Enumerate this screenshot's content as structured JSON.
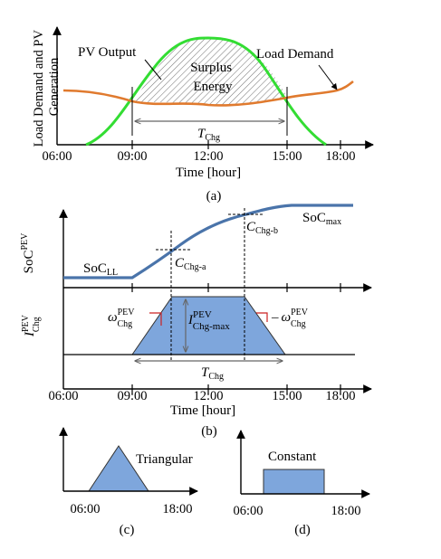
{
  "panel_a": {
    "ylabel_line1": "Load Demand and PV",
    "ylabel_line2": "Generation",
    "pv_label": "PV Output",
    "load_label": "Load Demand",
    "surplus_line1": "Surplus",
    "surplus_line2": "Energy",
    "tchg_base": "T",
    "tchg_sub": "Chg",
    "ticks": [
      "06:00",
      "09:00",
      "12:00",
      "15:00",
      "18:00"
    ],
    "xlabel": "Time [hour]",
    "caption": "(a)",
    "colors": {
      "pv": "#33dd33",
      "load": "#e07a2e"
    }
  },
  "panel_b": {
    "soc_axis_base": "SoC",
    "soc_axis_sup": "PEV",
    "soc_ll_base": "SoC",
    "soc_ll_sub": "LL",
    "soc_max_base": "SoC",
    "soc_max_sub": "max",
    "c_a_base": "C",
    "c_a_sub": "Chg-a",
    "c_b_base": "C",
    "c_b_sub": "Chg-b",
    "i_axis_base": "I",
    "i_axis_sup": "PEV",
    "i_axis_sub": "Chg",
    "imax_base": "I",
    "imax_sup": "PEV",
    "imax_sub": "Chg-max",
    "omega_base": "ω",
    "omega_sup": "PEV",
    "omega_sub": "Chg",
    "omega_minus": "–",
    "tchg_base": "T",
    "tchg_sub": "Chg",
    "ticks": [
      "06:00",
      "09:00",
      "12:00",
      "15:00",
      "18:00"
    ],
    "xlabel": "Time [hour]",
    "caption": "(b)",
    "colors": {
      "soc": "#4a74aa",
      "fill": "#7ea6dc"
    }
  },
  "panel_c": {
    "label": "Triangular",
    "tick_start": "06:00",
    "tick_end": "18:00",
    "caption": "(c)"
  },
  "panel_d": {
    "label": "Constant",
    "tick_start": "06:00",
    "tick_end": "18:00",
    "caption": "(d)"
  }
}
